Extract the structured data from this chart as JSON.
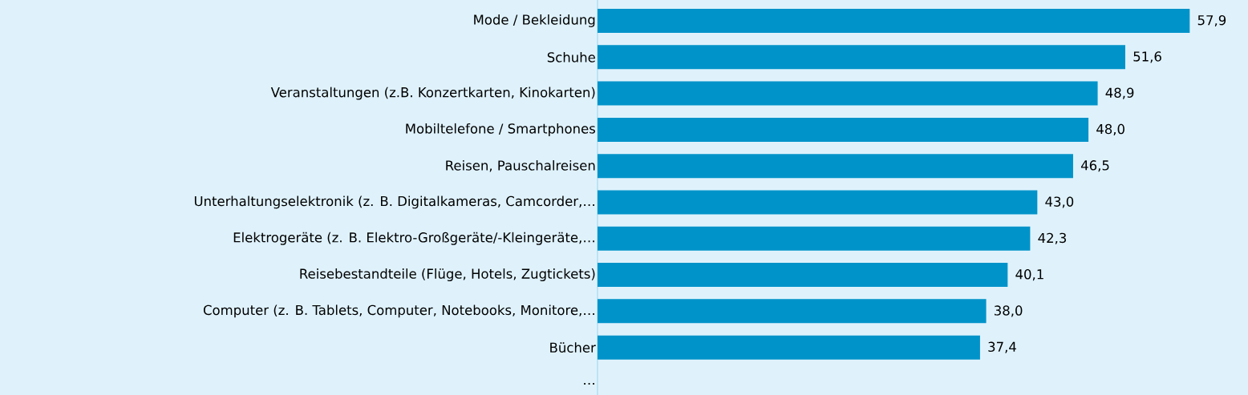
{
  "chart_data": {
    "type": "bar",
    "orientation": "horizontal",
    "color": "#0093c9",
    "categories": [
      "Mode / Bekleidung",
      "Schuhe",
      "Veranstaltungen (z.B. Konzertkarten, Kinokarten)",
      "Mobiltelefone / Smartphones",
      "Reisen, Pauschalreisen",
      "Unterhaltungselektronik (z. B. Digitalkameras, Camcorder,…",
      "Elektrogeräte (z. B. Elektro-Großgeräte/-Kleingeräte,…",
      "Reisebestandteile (Flüge, Hotels, Zugtickets)",
      "Computer (z. B. Tablets, Computer, Notebooks, Monitore,…",
      "Bücher",
      "…"
    ],
    "values": [
      57.9,
      51.6,
      48.9,
      48.0,
      46.5,
      43.0,
      42.3,
      40.1,
      38.0,
      37.4,
      null
    ],
    "value_labels": [
      "57,9",
      "51,6",
      "48,9",
      "48,0",
      "46,5",
      "43,0",
      "42,3",
      "40,1",
      "38,0",
      "37,4",
      null
    ],
    "xlim": [
      0,
      63.6
    ],
    "tick_labels": "y"
  }
}
